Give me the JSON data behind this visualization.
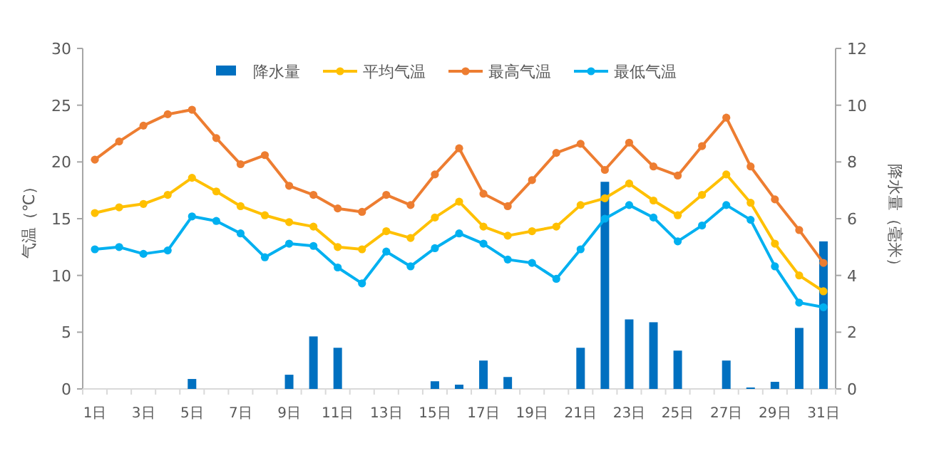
{
  "chart_data": {
    "type": "line",
    "ylabel": "气温（℃）",
    "y2label": "降水量（毫米）",
    "legend": "top",
    "marker": "circle",
    "categories": [
      "1日",
      null,
      "3日",
      null,
      "5日",
      null,
      "7日",
      null,
      "9日",
      null,
      "11日",
      null,
      "13日",
      null,
      "15日",
      null,
      "17日",
      null,
      "19日",
      null,
      "21日",
      null,
      "23日",
      null,
      "25日",
      null,
      "27日",
      null,
      "29日",
      null,
      "31日"
    ],
    "ylim": [
      0,
      30
    ],
    "yticks": [
      0,
      5,
      10,
      15,
      20,
      25,
      30
    ],
    "y2lim": [
      0,
      12
    ],
    "y2ticks": [
      0,
      2,
      4,
      6,
      8,
      10,
      12
    ],
    "series": [
      {
        "name": "降水量",
        "type": "bar",
        "axis": "y2",
        "color": "#0070c0",
        "values": [
          0,
          0,
          0,
          0,
          0.35,
          0,
          0,
          0,
          0.5,
          1.85,
          1.45,
          0,
          0,
          0,
          0.27,
          0.15,
          1.0,
          0.42,
          0,
          0,
          1.45,
          7.3,
          2.45,
          2.35,
          1.35,
          0,
          1.0,
          0.05,
          0.25,
          2.15,
          5.2
        ]
      },
      {
        "name": "平均气温",
        "color": "#ffc000",
        "values": [
          15.5,
          16.0,
          16.3,
          17.1,
          18.6,
          17.4,
          16.1,
          15.3,
          14.7,
          14.3,
          12.5,
          12.3,
          13.9,
          13.3,
          15.1,
          16.5,
          14.3,
          13.5,
          13.9,
          14.3,
          16.2,
          16.8,
          18.1,
          16.6,
          15.3,
          17.1,
          18.9,
          16.4,
          12.8,
          10.0,
          8.6
        ]
      },
      {
        "name": "最高气温",
        "color": "#ed7d31",
        "values": [
          20.2,
          21.8,
          23.2,
          24.2,
          24.6,
          22.1,
          19.8,
          20.6,
          17.9,
          17.1,
          15.9,
          15.6,
          17.1,
          16.2,
          18.9,
          21.2,
          17.2,
          16.1,
          18.4,
          20.8,
          21.6,
          19.3,
          21.7,
          19.6,
          18.8,
          21.4,
          23.9,
          19.6,
          16.7,
          14.0,
          11.1
        ]
      },
      {
        "name": "最低气温",
        "color": "#00b0f0",
        "values": [
          12.3,
          12.5,
          11.9,
          12.2,
          15.2,
          14.8,
          13.7,
          11.6,
          12.8,
          12.6,
          10.7,
          9.3,
          12.1,
          10.8,
          12.4,
          13.7,
          12.8,
          11.4,
          11.1,
          9.7,
          12.3,
          15.0,
          16.2,
          15.1,
          13.0,
          14.4,
          16.2,
          14.9,
          10.8,
          7.6,
          7.2
        ]
      }
    ]
  }
}
